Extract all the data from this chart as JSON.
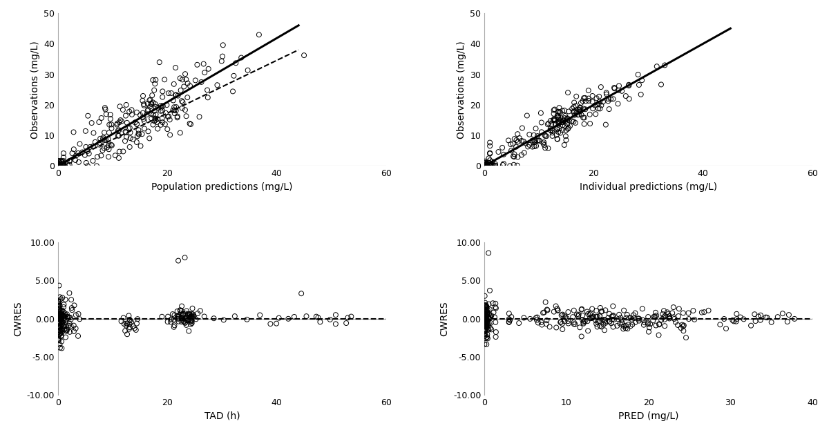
{
  "fig_width": 12.0,
  "fig_height": 6.36,
  "bg_color": "#ffffff",
  "ax1": {
    "xlabel": "Population predictions (mg/L)",
    "ylabel": "Observations (mg/L)",
    "xlim": [
      0,
      60
    ],
    "ylim": [
      0,
      50
    ],
    "xticks": [
      0,
      20,
      40,
      60
    ],
    "yticks": [
      0,
      10,
      20,
      30,
      40,
      50
    ],
    "scatter_seed": 42,
    "n_points": 250,
    "x_center": 15,
    "x_spread": 8,
    "noise_std": 5,
    "low_x_n": 30,
    "low_x_max": 3
  },
  "ax2": {
    "xlabel": "Individual predictions (mg/L)",
    "ylabel": "Observations (mg/L)",
    "xlim": [
      0,
      60
    ],
    "ylim": [
      0,
      50
    ],
    "xticks": [
      0,
      20,
      40,
      60
    ],
    "yticks": [
      0,
      10,
      20,
      30,
      40,
      50
    ],
    "scatter_seed": 43,
    "n_points": 250,
    "x_center": 14,
    "x_spread": 7,
    "noise_std": 3,
    "low_x_n": 40,
    "low_x_max": 2
  },
  "ax3": {
    "xlabel": "TAD (h)",
    "ylabel": "CWRES",
    "xlim": [
      0,
      60
    ],
    "ylim": [
      -10,
      10
    ],
    "xticks": [
      0,
      20,
      40,
      60
    ],
    "yticks": [
      -10.0,
      -5.0,
      0.0,
      5.0,
      10.0
    ],
    "scatter_seed": 44,
    "n_points": 280
  },
  "ax4": {
    "xlabel": "PRED (mg/L)",
    "ylabel": "CWRES",
    "xlim": [
      0,
      40
    ],
    "ylim": [
      -10,
      10
    ],
    "xticks": [
      0,
      10,
      20,
      30,
      40
    ],
    "yticks": [
      -10.0,
      -5.0,
      0.0,
      5.0,
      10.0
    ],
    "scatter_seed": 45,
    "n_points": 350
  },
  "marker_size": 5,
  "marker_color": "none",
  "marker_edge_color": "#000000",
  "marker_edge_width": 0.7,
  "line_color": "#000000",
  "dashed_color": "#000000",
  "ref_line_color": "#aaaaaa",
  "spine_color": "#aaaaaa",
  "label_font_size": 10,
  "tick_font_size": 9
}
